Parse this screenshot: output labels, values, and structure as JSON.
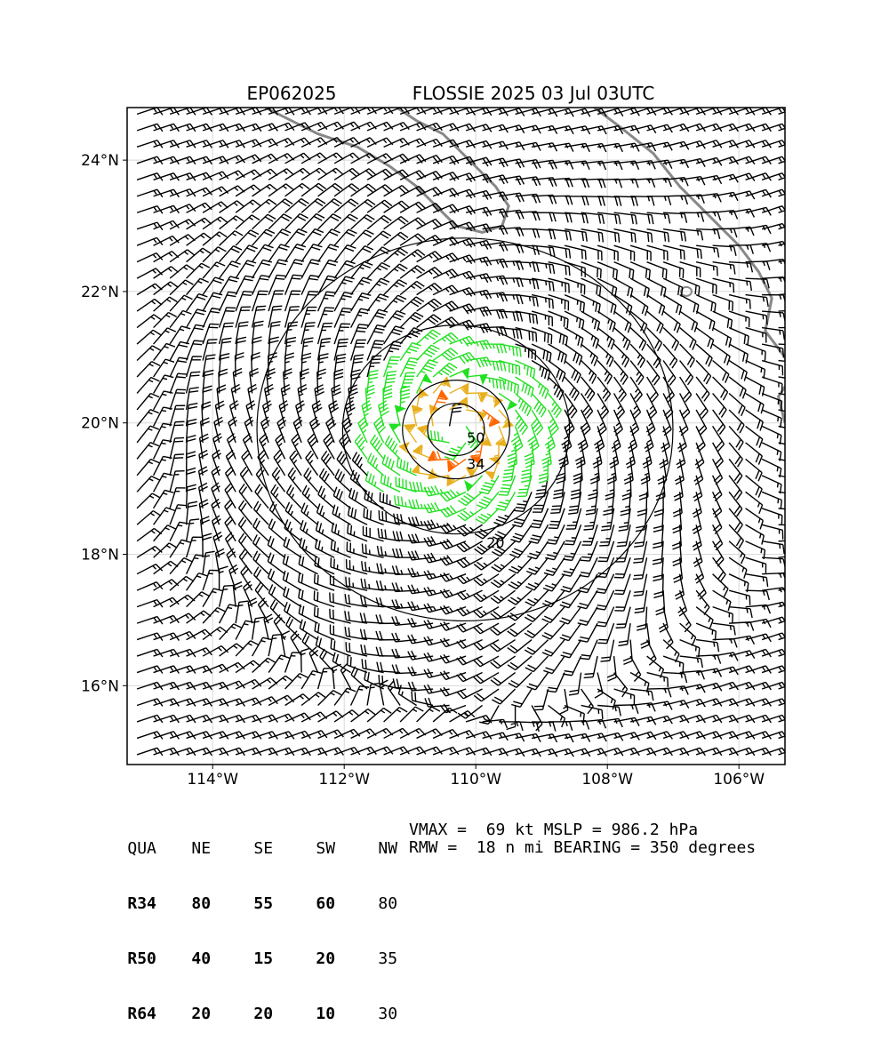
{
  "header": {
    "storm_id": "EP062025",
    "storm_title": "FLOSSIE 2025 03 Jul 03UTC"
  },
  "chart_data": {
    "type": "map-wind-barbs",
    "lon_range": [
      -115.3,
      -105.3
    ],
    "lat_range": [
      14.8,
      24.8
    ],
    "grid": true,
    "lat_ticks": [
      {
        "value": 24,
        "label": "24°N"
      },
      {
        "value": 22,
        "label": "22°N"
      },
      {
        "value": 20,
        "label": "20°N"
      },
      {
        "value": 18,
        "label": "18°N"
      },
      {
        "value": 16,
        "label": "16°N"
      }
    ],
    "lon_ticks": [
      {
        "value": -114,
        "label": "114°W"
      },
      {
        "value": -112,
        "label": "112°W"
      },
      {
        "value": -110,
        "label": "110°W"
      },
      {
        "value": -108,
        "label": "108°W"
      },
      {
        "value": -106,
        "label": "106°W"
      }
    ],
    "center": {
      "lon": -110.3,
      "lat": 19.9
    },
    "contour_labels": [
      {
        "value": "20",
        "lon": -109.7,
        "lat": 18.1
      },
      {
        "value": "34",
        "lon": -110.0,
        "lat": 19.3
      },
      {
        "value": "50",
        "lon": -110.0,
        "lat": 19.7
      }
    ],
    "wind_color_classes": [
      {
        "min_kt": 0,
        "max_kt": 34,
        "color": "#000000"
      },
      {
        "min_kt": 34,
        "max_kt": 50,
        "color": "#22e022"
      },
      {
        "min_kt": 50,
        "max_kt": 64,
        "color": "#e8b020"
      },
      {
        "min_kt": 64,
        "max_kt": 999,
        "color": "#ff6600"
      }
    ],
    "coast_color": "#888888"
  },
  "radii_table": {
    "headers": [
      "QUA",
      "NE",
      "SE",
      "SW",
      "NW"
    ],
    "rows": [
      {
        "label": "R34",
        "values": [
          "80",
          "55",
          "60",
          "80"
        ]
      },
      {
        "label": "R50",
        "values": [
          "40",
          "15",
          "20",
          "35"
        ]
      },
      {
        "label": "R64",
        "values": [
          "20",
          "20",
          "10",
          "30"
        ]
      }
    ]
  },
  "storm_info": {
    "line1": "VMAX =  69 kt MSLP = 986.2 hPa",
    "line2": "RMW =  18 n mi BEARING = 350 degrees"
  }
}
